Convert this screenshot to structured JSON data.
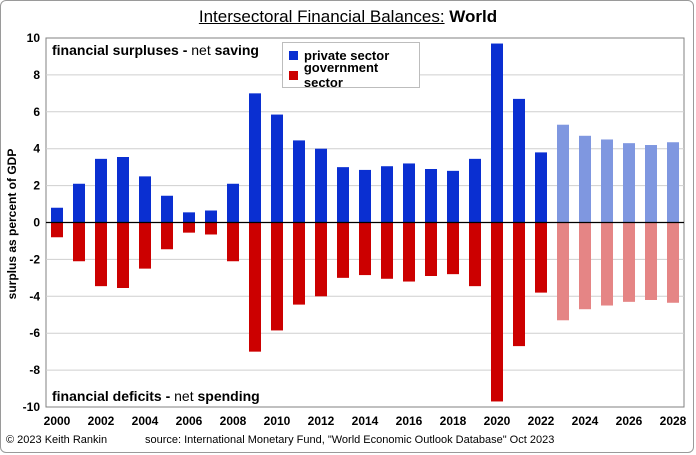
{
  "title": {
    "main": "Intersectoral Financial Balances:",
    "region": "World"
  },
  "annotations": {
    "surplus_bold": "financial surpluses -",
    "surplus_light": "net",
    "surplus_end": "saving",
    "deficit_bold": "financial deficits -",
    "deficit_light": "net",
    "deficit_end": "spending"
  },
  "footer": {
    "copyright": "© 2023 Keith Rankin",
    "source": "source: International Monetary Fund, \"World Economic Outlook Database\" Oct 2023"
  },
  "colors": {
    "private": "#0a2fd1",
    "government": "#cc0000",
    "private_forecast": "#7f97e0",
    "government_forecast": "#e58585"
  },
  "chart_data": {
    "type": "bar",
    "title": "Intersectoral Financial Balances: World",
    "ylabel": "surplus as percent of GDP",
    "xlabel": "",
    "ylim": [
      -10,
      10
    ],
    "yticks": [
      -10,
      -8,
      -6,
      -4,
      -2,
      0,
      2,
      4,
      6,
      8,
      10
    ],
    "xtick_labels": [
      "2000",
      "2002",
      "2004",
      "2006",
      "2008",
      "2010",
      "2012",
      "2014",
      "2016",
      "2018",
      "2020",
      "2022",
      "2024",
      "2026",
      "2028"
    ],
    "categories": [
      2000,
      2001,
      2002,
      2003,
      2004,
      2005,
      2006,
      2007,
      2008,
      2009,
      2010,
      2011,
      2012,
      2013,
      2014,
      2015,
      2016,
      2017,
      2018,
      2019,
      2020,
      2021,
      2022,
      2023,
      2024,
      2025,
      2026,
      2027,
      2028
    ],
    "forecast_from": 2023,
    "grid": true,
    "legend_position": "top-center",
    "series": [
      {
        "name": "private sector",
        "values": [
          0.8,
          2.1,
          3.45,
          3.55,
          2.5,
          1.45,
          0.55,
          0.65,
          2.1,
          7.0,
          5.85,
          4.45,
          4.0,
          3.0,
          2.85,
          3.05,
          3.2,
          2.9,
          2.8,
          3.45,
          9.7,
          6.7,
          3.8,
          5.3,
          4.7,
          4.5,
          4.3,
          4.2,
          4.35
        ]
      },
      {
        "name": "government sector",
        "values": [
          -0.8,
          -2.1,
          -3.45,
          -3.55,
          -2.5,
          -1.45,
          -0.55,
          -0.65,
          -2.1,
          -7.0,
          -5.85,
          -4.45,
          -4.0,
          -3.0,
          -2.85,
          -3.05,
          -3.2,
          -2.9,
          -2.8,
          -3.45,
          -9.7,
          -6.7,
          -3.8,
          -5.3,
          -4.7,
          -4.5,
          -4.3,
          -4.2,
          -4.35
        ]
      }
    ]
  }
}
